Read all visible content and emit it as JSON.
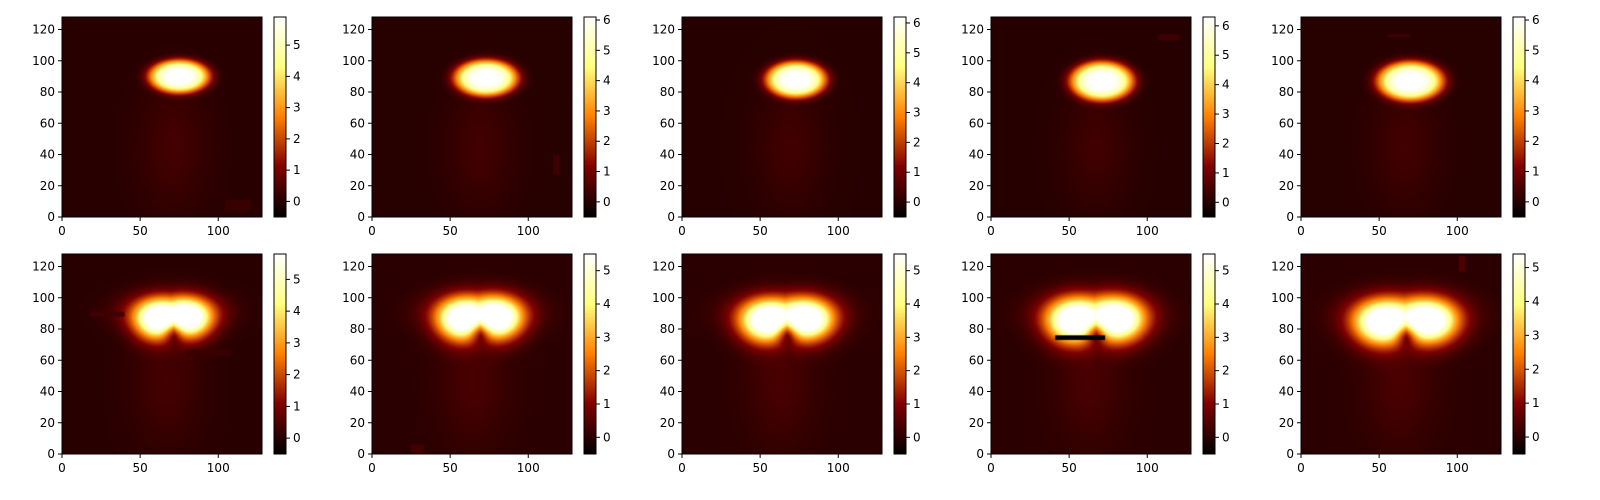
{
  "colors": {
    "colormap": "afmhot",
    "background": "#ffffff",
    "axes": "#000000"
  },
  "chart_data": [
    {
      "type": "heatmap",
      "colormap": "afmhot",
      "xlim": [
        0,
        128
      ],
      "ylim": [
        0,
        128
      ],
      "xticks": [
        "0",
        "50",
        "100"
      ],
      "yticks": [
        "0",
        "20",
        "40",
        "60",
        "80",
        "100",
        "120"
      ],
      "vmin": -0.5,
      "vmax": 5.9,
      "cbar_ticks": [
        "0",
        "1",
        "2",
        "3",
        "4",
        "5"
      ],
      "blob": {
        "cx": 75,
        "cy": 90,
        "rx": 20,
        "ry": 11,
        "peak": 5.9,
        "lobes": false
      },
      "occlusions": [
        {
          "x0": 104,
          "x1": 121,
          "y0": 4,
          "y1": 11,
          "v": 0.2
        }
      ]
    },
    {
      "type": "heatmap",
      "colormap": "afmhot",
      "xlim": [
        0,
        128
      ],
      "ylim": [
        0,
        128
      ],
      "xticks": [
        "0",
        "50",
        "100"
      ],
      "yticks": [
        "0",
        "20",
        "40",
        "60",
        "80",
        "100",
        "120"
      ],
      "vmin": -0.5,
      "vmax": 6.1,
      "cbar_ticks": [
        "0",
        "1",
        "2",
        "3",
        "4",
        "5",
        "6"
      ],
      "blob": {
        "cx": 73,
        "cy": 89,
        "rx": 21,
        "ry": 12,
        "peak": 6.1,
        "lobes": false
      },
      "occlusions": [
        {
          "x0": 116,
          "x1": 120,
          "y0": 27,
          "y1": 40,
          "v": 0.3
        }
      ]
    },
    {
      "type": "heatmap",
      "colormap": "afmhot",
      "xlim": [
        0,
        128
      ],
      "ylim": [
        0,
        128
      ],
      "xticks": [
        "0",
        "50",
        "100"
      ],
      "yticks": [
        "0",
        "20",
        "40",
        "60",
        "80",
        "100",
        "120"
      ],
      "vmin": -0.5,
      "vmax": 6.2,
      "cbar_ticks": [
        "0",
        "1",
        "2",
        "3",
        "4",
        "5",
        "6"
      ],
      "blob": {
        "cx": 73,
        "cy": 88,
        "rx": 20,
        "ry": 12,
        "peak": 6.2,
        "lobes": false
      },
      "occlusions": []
    },
    {
      "type": "heatmap",
      "colormap": "afmhot",
      "xlim": [
        0,
        128
      ],
      "ylim": [
        0,
        128
      ],
      "xticks": [
        "0",
        "50",
        "100"
      ],
      "yticks": [
        "0",
        "20",
        "40",
        "60",
        "80",
        "100",
        "120"
      ],
      "vmin": -0.5,
      "vmax": 6.3,
      "cbar_ticks": [
        "0",
        "1",
        "2",
        "3",
        "4",
        "5",
        "6"
      ],
      "blob": {
        "cx": 71,
        "cy": 87,
        "rx": 21,
        "ry": 13,
        "peak": 6.3,
        "lobes": false
      },
      "occlusions": [
        {
          "x0": 107,
          "x1": 121,
          "y0": 113,
          "y1": 117,
          "v": 0.3
        }
      ]
    },
    {
      "type": "heatmap",
      "colormap": "afmhot",
      "xlim": [
        0,
        128
      ],
      "ylim": [
        0,
        128
      ],
      "xticks": [
        "0",
        "50",
        "100"
      ],
      "yticks": [
        "0",
        "20",
        "40",
        "60",
        "80",
        "100",
        "120"
      ],
      "vmin": -0.5,
      "vmax": 6.1,
      "cbar_ticks": [
        "0",
        "1",
        "2",
        "3",
        "4",
        "5",
        "6"
      ],
      "blob": {
        "cx": 70,
        "cy": 87,
        "rx": 22,
        "ry": 13,
        "peak": 6.1,
        "lobes": false
      },
      "occlusions": [
        {
          "x0": 55,
          "x1": 70,
          "y0": 115,
          "y1": 117,
          "v": 0.3
        }
      ]
    },
    {
      "type": "heatmap",
      "colormap": "afmhot",
      "xlim": [
        0,
        128
      ],
      "ylim": [
        0,
        128
      ],
      "xticks": [
        "0",
        "50",
        "100"
      ],
      "yticks": [
        "0",
        "20",
        "40",
        "60",
        "80",
        "100",
        "120"
      ],
      "vmin": -0.5,
      "vmax": 5.8,
      "cbar_ticks": [
        "0",
        "1",
        "2",
        "3",
        "4",
        "5"
      ],
      "blob": {
        "cx": 71,
        "cy": 85,
        "rx": 23,
        "ry": 14,
        "peak": 5.8,
        "lobes": true,
        "ldx": 9
      },
      "occlusions": [
        {
          "x0": 18,
          "x1": 40,
          "y0": 88,
          "y1": 91,
          "v": 0.3
        },
        {
          "x0": 79,
          "x1": 108,
          "y0": 63,
          "y1": 67,
          "v": 0.2
        }
      ]
    },
    {
      "type": "heatmap",
      "colormap": "afmhot",
      "xlim": [
        0,
        128
      ],
      "ylim": [
        0,
        128
      ],
      "xticks": [
        "0",
        "50",
        "100"
      ],
      "yticks": [
        "0",
        "20",
        "40",
        "60",
        "80",
        "100",
        "120"
      ],
      "vmin": -0.5,
      "vmax": 5.5,
      "cbar_ticks": [
        "0",
        "1",
        "2",
        "3",
        "4",
        "5"
      ],
      "blob": {
        "cx": 69,
        "cy": 85,
        "rx": 24,
        "ry": 15,
        "peak": 5.5,
        "lobes": true,
        "ldx": 11
      },
      "occlusions": [
        {
          "x0": 25,
          "x1": 33,
          "y0": 0,
          "y1": 6,
          "v": 0.3
        }
      ]
    },
    {
      "type": "heatmap",
      "colormap": "afmhot",
      "xlim": [
        0,
        128
      ],
      "ylim": [
        0,
        128
      ],
      "xticks": [
        "0",
        "50",
        "100"
      ],
      "yticks": [
        "0",
        "20",
        "40",
        "60",
        "80",
        "100",
        "120"
      ],
      "vmin": -0.5,
      "vmax": 5.5,
      "cbar_ticks": [
        "0",
        "1",
        "2",
        "3",
        "4",
        "5"
      ],
      "blob": {
        "cx": 67,
        "cy": 84,
        "rx": 25,
        "ry": 15,
        "peak": 5.5,
        "lobes": true,
        "ldx": 13
      },
      "occlusions": []
    },
    {
      "type": "heatmap",
      "colormap": "afmhot",
      "xlim": [
        0,
        128
      ],
      "ylim": [
        0,
        128
      ],
      "xticks": [
        "0",
        "50",
        "100"
      ],
      "yticks": [
        "0",
        "20",
        "40",
        "60",
        "80",
        "100",
        "120"
      ],
      "vmin": -0.5,
      "vmax": 5.5,
      "cbar_ticks": [
        "0",
        "1",
        "2",
        "3",
        "4",
        "5"
      ],
      "blob": {
        "cx": 67,
        "cy": 84,
        "rx": 26,
        "ry": 16,
        "peak": 5.5,
        "lobes": true,
        "ldx": 14
      },
      "occlusions": [
        {
          "x0": 41,
          "x1": 73,
          "y0": 73,
          "y1": 76,
          "v": -0.5
        }
      ]
    },
    {
      "type": "heatmap",
      "colormap": "afmhot",
      "xlim": [
        0,
        128
      ],
      "ylim": [
        0,
        128
      ],
      "xticks": [
        "0",
        "50",
        "100"
      ],
      "yticks": [
        "0",
        "20",
        "40",
        "60",
        "80",
        "100",
        "120"
      ],
      "vmin": -0.5,
      "vmax": 5.4,
      "cbar_ticks": [
        "0",
        "1",
        "2",
        "3",
        "4",
        "5"
      ],
      "blob": {
        "cx": 67,
        "cy": 83,
        "rx": 27,
        "ry": 16,
        "peak": 5.4,
        "lobes": true,
        "ldx": 15
      },
      "occlusions": [
        {
          "x0": 101,
          "x1": 105,
          "y0": 117,
          "y1": 127,
          "v": 0.4
        }
      ]
    }
  ]
}
